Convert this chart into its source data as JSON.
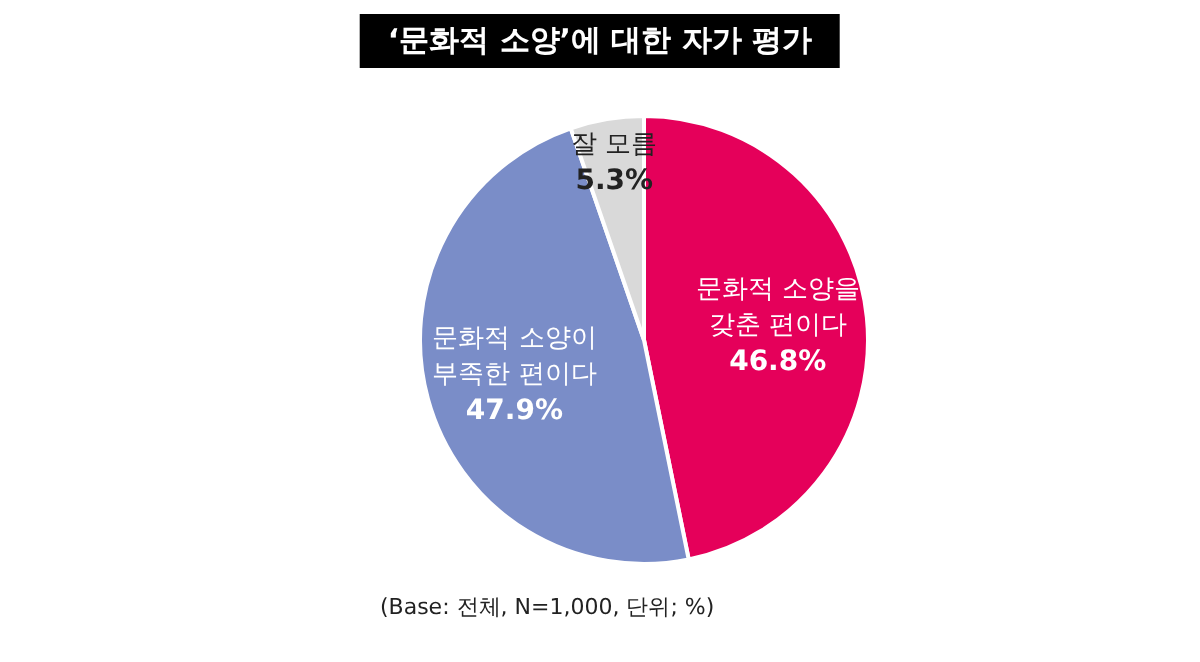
{
  "chart_data": {
    "type": "pie",
    "title": "‘문화적 소양’에 대한 자가 평가",
    "categories": [
      "문화적 소양을 갖춘 편이다",
      "문화적 소양이 부족한 편이다",
      "잘 모름"
    ],
    "values": [
      46.8,
      47.9,
      5.3
    ],
    "colors": [
      "#e5005a",
      "#7a8dc8",
      "#d9d9d9"
    ],
    "value_labels": [
      "46.8%",
      "47.9%",
      "5.3%"
    ],
    "legend": false,
    "annotations": [
      "(Base: 전체, N=1,000, 단위; %)"
    ]
  }
}
